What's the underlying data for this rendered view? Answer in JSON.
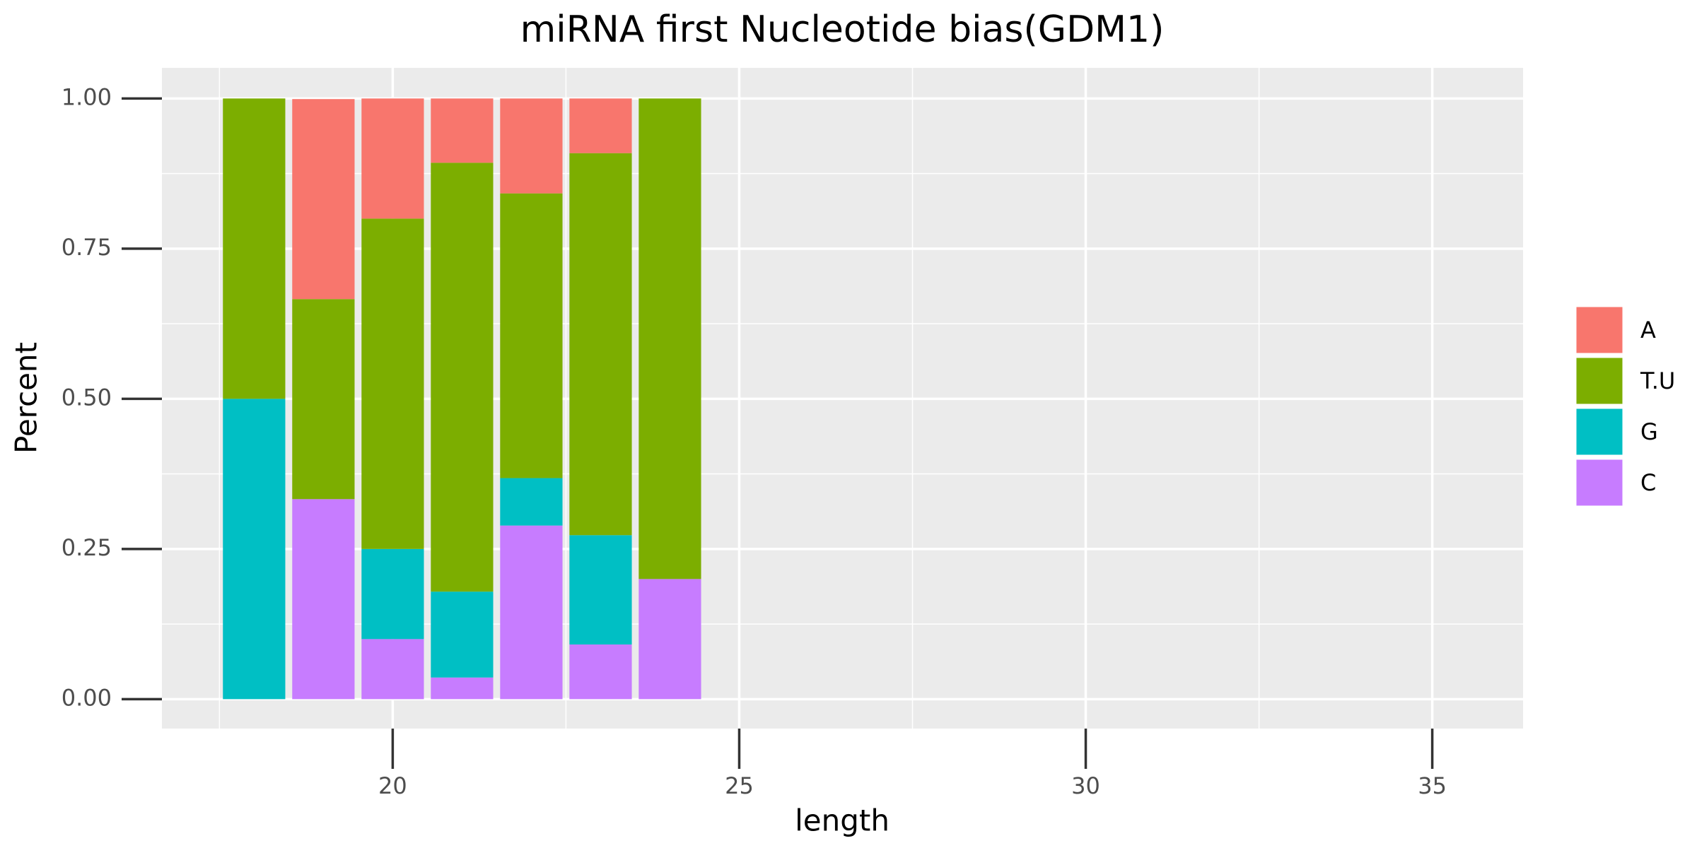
{
  "chart_data": {
    "type": "stacked_bar",
    "title": "miRNA first Nucleotide bias(GDM1)",
    "x_label": "length",
    "y_label": "Percent",
    "x": [
      18,
      19,
      20,
      21,
      22,
      23,
      24
    ],
    "series": [
      {
        "name": "A",
        "color": "#F8766D",
        "values": [
          0,
          0.333,
          0.2,
          0.107,
          0.158,
          0.091,
          0
        ]
      },
      {
        "name": "T.U",
        "color": "#7CAE00",
        "values": [
          0.5,
          0.333,
          0.55,
          0.714,
          0.474,
          0.636,
          0.8
        ]
      },
      {
        "name": "G",
        "color": "#00BFC4",
        "values": [
          0.5,
          0,
          0.15,
          0.143,
          0.079,
          0.182,
          0
        ]
      },
      {
        "name": "C",
        "color": "#C77CFF",
        "values": [
          0,
          0.333,
          0.1,
          0.036,
          0.289,
          0.091,
          0.2
        ]
      }
    ],
    "xlim": [
      16.67,
      36.31
    ],
    "xticks": [
      20,
      25,
      30,
      35
    ],
    "ylim": [
      -0.049,
      1.051
    ],
    "yticks": [
      {
        "value": 0,
        "label": "0.00"
      },
      {
        "value": 0.25,
        "label": "0.25"
      },
      {
        "value": 0.5,
        "label": "0.50"
      },
      {
        "value": 0.75,
        "label": "0.75"
      },
      {
        "value": 1,
        "label": "1.00"
      }
    ],
    "grid": true
  }
}
